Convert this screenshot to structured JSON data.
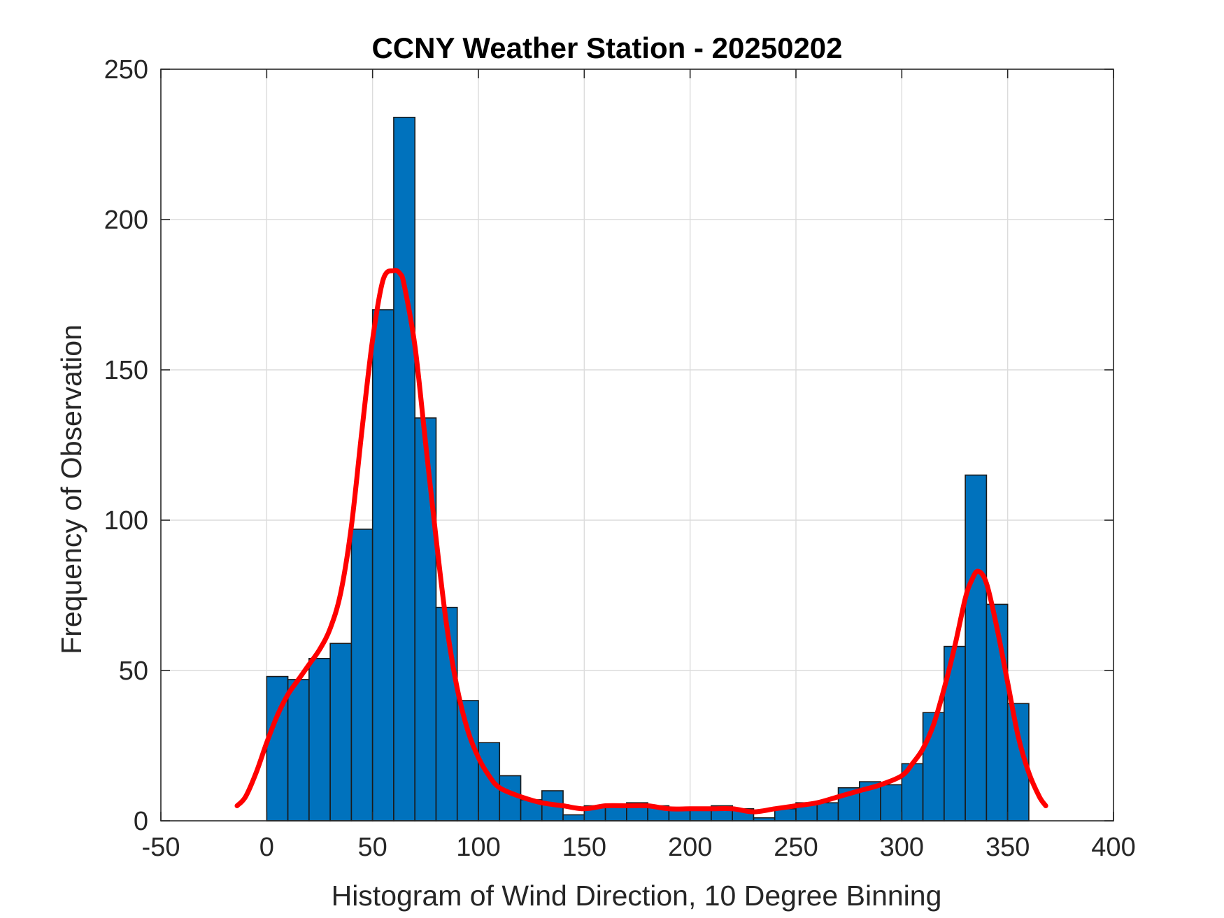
{
  "chart_data": {
    "type": "bar",
    "title": "CCNY Weather Station - 20250202",
    "xlabel": "Histogram of Wind Direction, 10 Degree Binning",
    "ylabel": "Frequency of Observation",
    "xlim": [
      -50,
      400
    ],
    "ylim": [
      0,
      250
    ],
    "xticks": [
      -50,
      0,
      50,
      100,
      150,
      200,
      250,
      300,
      350,
      400
    ],
    "yticks": [
      0,
      50,
      100,
      150,
      200,
      250
    ],
    "grid": true,
    "bin_width": 10,
    "bin_edges": [
      0,
      10,
      20,
      30,
      40,
      50,
      60,
      70,
      80,
      90,
      100,
      110,
      120,
      130,
      140,
      150,
      160,
      170,
      180,
      190,
      200,
      210,
      220,
      230,
      240,
      250,
      260,
      270,
      280,
      290,
      300,
      310,
      320,
      330,
      340,
      350
    ],
    "values": [
      48,
      47,
      54,
      59,
      97,
      170,
      234,
      134,
      71,
      40,
      26,
      15,
      7,
      10,
      2,
      5,
      5,
      6,
      5,
      4,
      4,
      5,
      4,
      1,
      4,
      6,
      6,
      11,
      13,
      12,
      19,
      36,
      58,
      115,
      72,
      39
    ],
    "bar_color": "#0072BD",
    "series": [
      {
        "name": "density fit",
        "color": "#FF0000",
        "x": [
          -14,
          -10,
          -5,
          0,
          5,
          10,
          15,
          20,
          25,
          30,
          35,
          40,
          45,
          50,
          55,
          60,
          63,
          65,
          70,
          75,
          80,
          85,
          90,
          95,
          100,
          105,
          110,
          120,
          130,
          140,
          150,
          160,
          170,
          180,
          190,
          200,
          210,
          220,
          230,
          240,
          250,
          260,
          270,
          280,
          290,
          300,
          305,
          310,
          315,
          320,
          325,
          330,
          333,
          336,
          340,
          345,
          350,
          355,
          360,
          365,
          368
        ],
        "y": [
          5,
          8,
          16,
          26,
          35,
          42,
          47,
          52,
          57,
          64,
          76,
          98,
          130,
          160,
          180,
          183,
          182,
          178,
          158,
          126,
          94,
          65,
          44,
          30,
          21,
          15,
          11,
          8,
          6,
          5,
          4,
          5,
          5,
          5,
          4,
          4,
          4,
          4,
          3,
          4,
          5,
          6,
          8,
          10,
          12,
          15,
          19,
          24,
          32,
          44,
          58,
          74,
          80,
          83,
          79,
          64,
          46,
          28,
          16,
          8,
          5
        ]
      }
    ]
  }
}
